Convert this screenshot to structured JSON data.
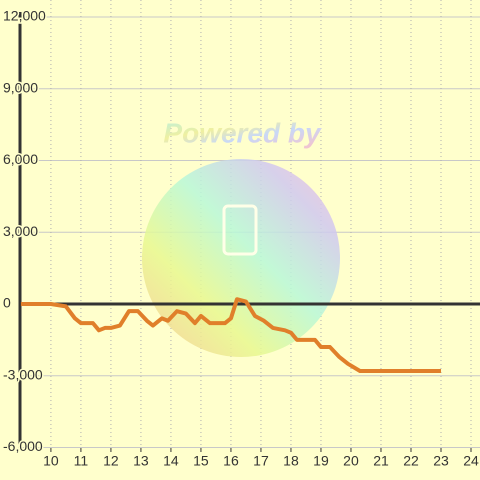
{
  "chart_data": {
    "type": "line",
    "watermark": "Powered by",
    "x": [
      9.0,
      10.0,
      10.5,
      10.8,
      11.0,
      11.4,
      11.6,
      11.8,
      12.0,
      12.3,
      12.6,
      12.9,
      13.2,
      13.4,
      13.7,
      13.9,
      14.2,
      14.5,
      14.8,
      15.0,
      15.3,
      15.8,
      16.0,
      16.2,
      16.5,
      16.8,
      17.1,
      17.4,
      17.8,
      18.0,
      18.2,
      18.8,
      19.0,
      19.3,
      19.6,
      19.9,
      20.3,
      23.0
    ],
    "series": [
      {
        "color": "#e07f2a",
        "values": [
          0,
          0,
          -100,
          -600,
          -800,
          -800,
          -1100,
          -1000,
          -1000,
          -900,
          -300,
          -300,
          -700,
          -900,
          -600,
          -700,
          -300,
          -400,
          -800,
          -500,
          -800,
          -800,
          -600,
          200,
          100,
          -500,
          -700,
          -1000,
          -1100,
          -1200,
          -1500,
          -1500,
          -1800,
          -1800,
          -2200,
          -2500,
          -2800,
          -2800
        ]
      }
    ],
    "xlim": [
      8.97,
      24.3
    ],
    "xticks": [
      10,
      11,
      12,
      13,
      14,
      15,
      16,
      17,
      18,
      19,
      20,
      21,
      22,
      23,
      24
    ],
    "ylim": [
      -6020,
      12710
    ],
    "yticks": [
      {
        "value": -6000,
        "label": "-6,000"
      },
      {
        "value": -3000,
        "label": "-3,000"
      },
      0,
      {
        "value": 3000,
        "label": "3,000"
      },
      {
        "value": 6000,
        "label": "6,000"
      },
      {
        "value": 9000,
        "label": "9,000"
      },
      {
        "value": 12000,
        "label": "12,000"
      }
    ],
    "grid": true
  }
}
